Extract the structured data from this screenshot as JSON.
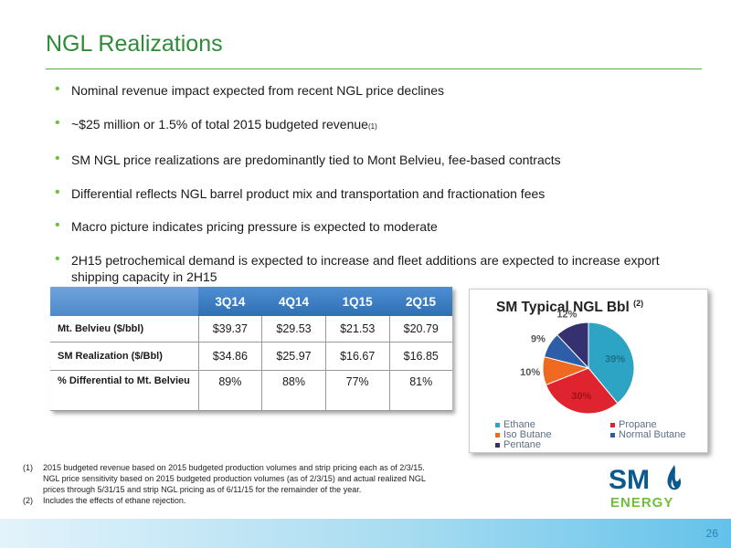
{
  "slide": {
    "title": "NGL Realizations",
    "page_number": "26"
  },
  "bullets": [
    {
      "text": "Nominal revenue impact expected from recent NGL price declines",
      "sup": ""
    },
    {
      "text": "~$25 million or 1.5% of total 2015 budgeted revenue",
      "sup": "(1)"
    },
    {
      "text": "SM NGL price realizations are predominantly tied to Mont Belvieu, fee-based contracts",
      "sup": ""
    },
    {
      "text": "Differential reflects NGL barrel product mix and transportation and fractionation fees",
      "sup": ""
    },
    {
      "text": "Macro picture indicates pricing pressure is expected to moderate",
      "sup": ""
    },
    {
      "text": "2H15 petrochemical demand is expected to increase and fleet additions are expected to increase export shipping capacity in 2H15",
      "sup": ""
    }
  ],
  "table": {
    "headers": [
      "3Q14",
      "4Q14",
      "1Q15",
      "2Q15"
    ],
    "rows": [
      {
        "label": "Mt. Belvieu ($/bbl)",
        "values": [
          "$39.37",
          "$29.53",
          "$21.53",
          "$20.79"
        ]
      },
      {
        "label": "SM Realization ($/Bbl)",
        "values": [
          "$34.86",
          "$25.97",
          "$16.67",
          "$16.85"
        ]
      },
      {
        "label": "% Differential to Mt. Belvieu",
        "values": [
          "89%",
          "88%",
          "77%",
          "81%"
        ]
      }
    ]
  },
  "chart_data": {
    "type": "pie",
    "title": "SM Typical NGL Bbl",
    "title_sup": "(2)",
    "slices": [
      {
        "label": "Ethane",
        "value": 39,
        "display": "39%",
        "color": "#2ea4c4"
      },
      {
        "label": "Propane",
        "value": 30,
        "display": "30%",
        "color": "#e0242f"
      },
      {
        "label": "Iso Butane",
        "value": 10,
        "display": "10%",
        "color": "#ef6a20"
      },
      {
        "label": "Normal Butane",
        "value": 9,
        "display": "9%",
        "color": "#2f5ea8"
      },
      {
        "label": "Pentane",
        "value": 12,
        "display": "12%",
        "color": "#35306f"
      }
    ],
    "legend_position": "bottom"
  },
  "footnotes": [
    {
      "num": "(1)",
      "text": "2015 budgeted revenue based on 2015 budgeted production volumes and strip pricing each as of 2/3/15. NGL price sensitivity based on 2015 budgeted production volumes (as of 2/3/15) and actual realized NGL prices through 5/31/15 and strip NGL pricing as of 6/11/15 for the remainder of the year."
    },
    {
      "num": "(2)",
      "text": "Includes the effects of ethane rejection."
    }
  ],
  "logo": {
    "text_top": "SM",
    "text_bottom": "ENERGY",
    "color": "#0a5a8f",
    "accent": "#6fbf3b"
  },
  "colors": {
    "title_green": "#2e8b3a",
    "bullet_green": "#6fbf3b",
    "table_header_blue": "#3a7cc4"
  }
}
